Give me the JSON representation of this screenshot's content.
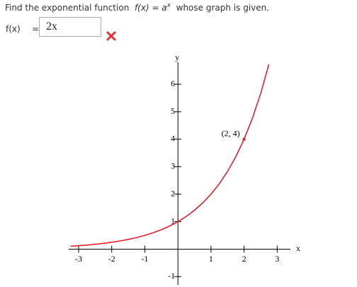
{
  "question": {
    "prompt_start": "Find the exponential function",
    "function": "f(x) = a",
    "exponent": "x",
    "prompt_end": "whose graph is given."
  },
  "answer": {
    "label": "f(x)",
    "equals": "=",
    "input": "2x"
  },
  "chart_data": {
    "type": "line",
    "x": [
      -3.25,
      -3,
      -2.75,
      -2.5,
      -2.25,
      -2,
      -1.75,
      -1.5,
      -1.25,
      -1,
      -0.75,
      -0.5,
      -0.25,
      0,
      0.25,
      0.5,
      0.75,
      1,
      1.25,
      1.5,
      1.75,
      2,
      2.25,
      2.5,
      2.75
    ],
    "values": [
      0.105,
      0.125,
      0.149,
      0.177,
      0.21,
      0.25,
      0.297,
      0.354,
      0.42,
      0.5,
      0.595,
      0.707,
      0.841,
      1,
      1.189,
      1.414,
      1.682,
      2,
      2.378,
      2.828,
      3.364,
      4,
      4.757,
      5.657,
      6.727
    ],
    "color": "#e8202a",
    "x_label": "x",
    "y_label": "y",
    "xlim": [
      -3.3,
      3.4
    ],
    "ylim": [
      -1.3,
      6.8
    ],
    "xticks": [
      -3,
      -2,
      -1,
      1,
      2,
      3
    ],
    "yticks": [
      -1,
      1,
      2,
      3,
      4,
      5,
      6
    ],
    "annotation": {
      "text": "(2, 4)",
      "x": 2,
      "y": 4
    }
  }
}
